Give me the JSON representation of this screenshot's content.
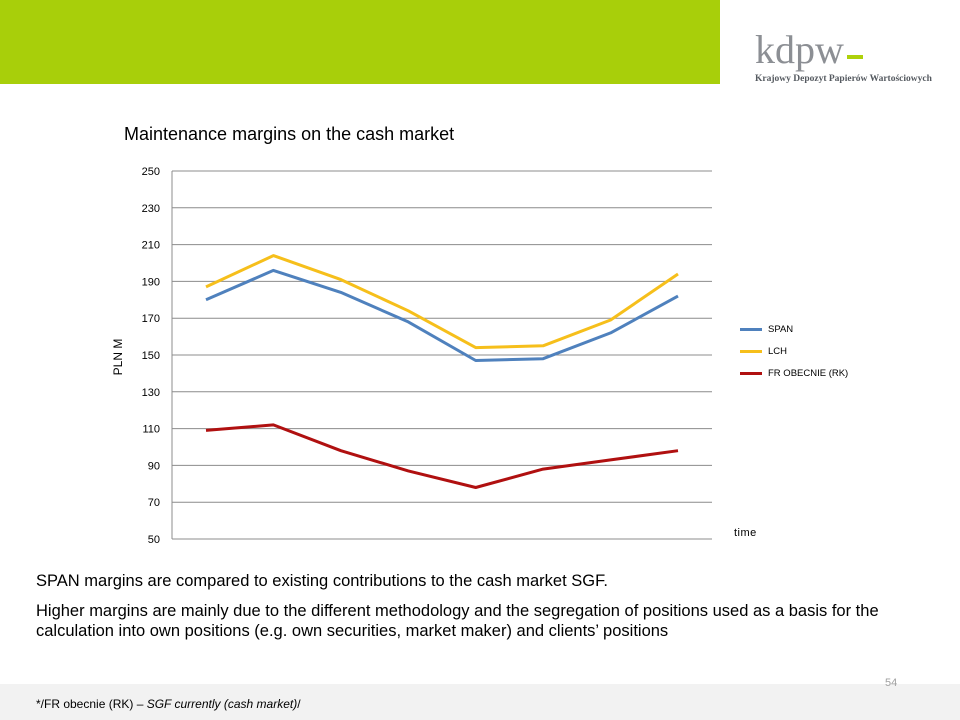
{
  "brand": {
    "logo_text": "kdpw",
    "logo_subtitle": "Krajowy Depozyt Papierów Wartościowych",
    "header_color": "#a8cf0a",
    "accent_color": "#aed10a"
  },
  "chart_data": {
    "type": "line",
    "title": "Maintenance margins on the cash market",
    "xlabel": "time",
    "ylabel": "PLN M",
    "ylim": [
      50,
      250
    ],
    "yticks": [
      50,
      70,
      90,
      110,
      130,
      150,
      170,
      190,
      210,
      230,
      250
    ],
    "grid": true,
    "legend_position": "right",
    "series": [
      {
        "name": "SPAN",
        "color": "#4f81bd",
        "values": [
          180,
          196,
          184,
          168,
          147,
          148,
          162,
          182
        ]
      },
      {
        "name": "LCH",
        "color": "#f6bf1b",
        "values": [
          187,
          204,
          191,
          174,
          154,
          155,
          169,
          194
        ]
      },
      {
        "name": "FR OBECNIE (RK)",
        "color": "#b01010",
        "values": [
          109,
          112,
          98,
          87,
          78,
          88,
          93,
          98
        ]
      }
    ]
  },
  "body": {
    "paragraph1": "SPAN margins are compared to existing contributions to the cash market SGF.",
    "paragraph2": "Higher margins are mainly due to the different methodology and the segregation of positions used as a basis for the calculation into own positions (e.g. own securities, market maker) and clients’ positions"
  },
  "footer": {
    "page_number": "54",
    "footnote_prefix": "*/FR obecnie (RK) – ",
    "footnote_italic": "SGF currently (cash market)",
    "footnote_suffix": "/"
  }
}
